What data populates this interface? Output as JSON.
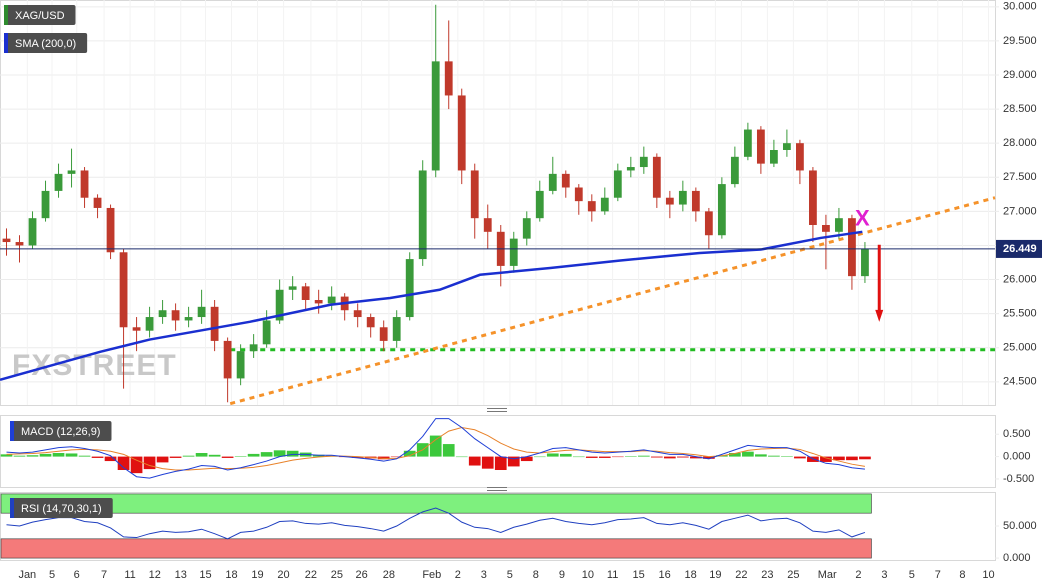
{
  "chart_data": [
    {
      "type": "candlestick",
      "series": [
        {
          "name": "XAG/USD",
          "up_color": "#3a9a3a",
          "down_color": "#c0392b",
          "legend_color": "#2e8b2e",
          "open": [
            26.6,
            26.55,
            26.5,
            26.9,
            27.3,
            27.55,
            27.6,
            27.2,
            27.05,
            26.4,
            25.3,
            25.25,
            25.45,
            25.55,
            25.4,
            25.45,
            25.6,
            25.1,
            24.55,
            24.95,
            25.05,
            25.4,
            25.85,
            25.9,
            25.7,
            25.65,
            25.75,
            25.55,
            25.45,
            25.3,
            25.1,
            25.45,
            26.3,
            27.6,
            29.2,
            28.7,
            27.6,
            26.9,
            26.7,
            26.2,
            26.6,
            26.9,
            27.3,
            27.55,
            27.35,
            27.15,
            27.0,
            27.2,
            27.6,
            27.65,
            27.8,
            27.2,
            27.1,
            27.3,
            27.0,
            26.65,
            27.4,
            27.8,
            28.2,
            27.7,
            27.9,
            28.0,
            27.6,
            26.8,
            26.7,
            26.9,
            26.05
          ],
          "high": [
            26.75,
            26.65,
            27.0,
            27.45,
            27.7,
            27.92,
            27.65,
            27.25,
            27.1,
            26.45,
            25.45,
            25.6,
            25.7,
            25.65,
            25.6,
            25.85,
            25.7,
            25.15,
            25.05,
            25.2,
            25.55,
            26.0,
            26.05,
            25.95,
            25.85,
            25.9,
            25.8,
            25.65,
            25.5,
            25.4,
            25.55,
            26.4,
            27.75,
            30.03,
            29.8,
            28.8,
            27.7,
            27.1,
            26.8,
            26.7,
            27.0,
            27.45,
            27.8,
            27.6,
            27.4,
            27.25,
            27.35,
            27.7,
            27.8,
            27.95,
            27.85,
            27.3,
            27.45,
            27.35,
            27.05,
            27.5,
            27.95,
            28.3,
            28.25,
            28.05,
            28.2,
            28.05,
            27.65,
            26.95,
            27.05,
            26.95,
            26.55
          ],
          "low": [
            26.35,
            26.25,
            26.45,
            26.85,
            27.2,
            27.35,
            27.05,
            26.9,
            26.3,
            24.4,
            24.95,
            25.15,
            25.35,
            25.25,
            25.3,
            25.35,
            24.95,
            24.2,
            24.45,
            24.85,
            25.0,
            25.35,
            25.7,
            25.55,
            25.5,
            25.55,
            25.4,
            25.3,
            25.15,
            24.95,
            25.0,
            25.4,
            26.2,
            27.5,
            28.5,
            27.4,
            26.6,
            26.45,
            25.9,
            26.1,
            26.5,
            26.85,
            27.25,
            27.2,
            26.95,
            26.85,
            26.95,
            27.15,
            27.5,
            27.55,
            27.05,
            26.9,
            27.0,
            26.85,
            26.45,
            26.6,
            27.35,
            27.75,
            27.55,
            27.65,
            27.8,
            27.4,
            26.55,
            26.15,
            26.6,
            25.85,
            25.95
          ],
          "close": [
            26.55,
            26.5,
            26.9,
            27.3,
            27.55,
            27.6,
            27.2,
            27.05,
            26.4,
            25.3,
            25.25,
            25.45,
            25.55,
            25.4,
            25.45,
            25.6,
            25.1,
            24.55,
            24.95,
            25.05,
            25.4,
            25.85,
            25.9,
            25.7,
            25.65,
            25.75,
            25.55,
            25.45,
            25.3,
            25.1,
            25.45,
            26.3,
            27.6,
            29.2,
            28.7,
            27.6,
            26.9,
            26.7,
            26.2,
            26.6,
            26.9,
            27.3,
            27.55,
            27.35,
            27.15,
            27.0,
            27.2,
            27.6,
            27.65,
            27.8,
            27.2,
            27.1,
            27.3,
            27.0,
            26.65,
            27.4,
            27.8,
            28.2,
            27.7,
            27.9,
            28.0,
            27.6,
            26.8,
            26.7,
            26.9,
            26.05,
            26.45
          ]
        }
      ],
      "sma": {
        "name": "SMA (200,0)",
        "color": "#1a2fd0",
        "x": [
          -0.5,
          7.2,
          11.0,
          18.7,
          24.9,
          29.5,
          33.3,
          36.4,
          41.8,
          47.2,
          53.3,
          58.0,
          62.6,
          65.8
        ],
        "values": [
          24.53,
          24.94,
          25.12,
          25.38,
          25.63,
          25.73,
          25.85,
          26.07,
          26.17,
          26.28,
          26.39,
          26.44,
          26.61,
          26.7
        ]
      },
      "last_price": 26.449,
      "last_price_color": "#1a2a6a",
      "trendline": {
        "x": [
          17.2,
          76
        ],
        "values": [
          24.18,
          27.2
        ],
        "color": "#f5922a"
      },
      "support": {
        "x": [
          17.2,
          76
        ],
        "value": 24.97,
        "color": "#22bb22"
      },
      "marker": {
        "text": "X",
        "x": 65.8,
        "value": 26.88,
        "color": "#e020d0"
      },
      "arrow": {
        "x": 67.1,
        "values": [
          26.51,
          25.38
        ],
        "color": "#e01010"
      },
      "watermark": "FXSTREET",
      "grid": true,
      "xlim": [
        -0.5,
        76
      ],
      "ylim": [
        24.16,
        30.1
      ],
      "yticks": [
        {
          "value": 24.5,
          "label": "24.500"
        },
        {
          "value": 25,
          "label": "25.000"
        },
        {
          "value": 25.5,
          "label": "25.500"
        },
        {
          "value": 26,
          "label": "26.000"
        },
        {
          "value": 26.5,
          "label": "26.500"
        },
        {
          "value": 27,
          "label": "27.000"
        },
        {
          "value": 27.5,
          "label": "27.500"
        },
        {
          "value": 28,
          "label": "28.000"
        },
        {
          "value": 28.5,
          "label": "28.500"
        },
        {
          "value": 29,
          "label": "29.000"
        },
        {
          "value": 29.5,
          "label": "29.500"
        },
        {
          "value": 30,
          "label": "30.000"
        }
      ],
      "xticks": [
        {
          "value": 1.6,
          "label": "Jan"
        },
        {
          "value": 3.5,
          "label": "5"
        },
        {
          "value": 5.4,
          "label": "6"
        },
        {
          "value": 7.5,
          "label": "7"
        },
        {
          "value": 9.5,
          "label": "11"
        },
        {
          "value": 11.4,
          "label": "12"
        },
        {
          "value": 13.4,
          "label": "13"
        },
        {
          "value": 15.3,
          "label": "15"
        },
        {
          "value": 17.3,
          "label": "18"
        },
        {
          "value": 19.3,
          "label": "19"
        },
        {
          "value": 21.3,
          "label": "20"
        },
        {
          "value": 23.4,
          "label": "22"
        },
        {
          "value": 25.4,
          "label": "25"
        },
        {
          "value": 27.3,
          "label": "26"
        },
        {
          "value": 29.4,
          "label": "28"
        },
        {
          "value": 32.7,
          "label": "Feb"
        },
        {
          "value": 34.7,
          "label": "2"
        },
        {
          "value": 36.7,
          "label": "3"
        },
        {
          "value": 38.7,
          "label": "5"
        },
        {
          "value": 40.7,
          "label": "8"
        },
        {
          "value": 42.7,
          "label": "9"
        },
        {
          "value": 44.7,
          "label": "10"
        },
        {
          "value": 46.6,
          "label": "11"
        },
        {
          "value": 48.6,
          "label": "15"
        },
        {
          "value": 50.6,
          "label": "16"
        },
        {
          "value": 52.6,
          "label": "18"
        },
        {
          "value": 54.5,
          "label": "19"
        },
        {
          "value": 56.5,
          "label": "22"
        },
        {
          "value": 58.5,
          "label": "23"
        },
        {
          "value": 60.5,
          "label": "25"
        },
        {
          "value": 63.1,
          "label": "Mar"
        },
        {
          "value": 65.5,
          "label": "2"
        },
        {
          "value": 67.5,
          "label": "3"
        },
        {
          "value": 69.6,
          "label": "5"
        },
        {
          "value": 71.6,
          "label": "7"
        },
        {
          "value": 73.5,
          "label": "8"
        },
        {
          "value": 75.5,
          "label": "10"
        }
      ]
    },
    {
      "type": "macd",
      "name": "MACD (12,26,9)",
      "legend_color": "#1f3fd6",
      "macd": {
        "color": "#1f3fd6",
        "values": [
          0.1,
          0.08,
          0.1,
          0.15,
          0.2,
          0.22,
          0.18,
          0.12,
          0.02,
          -0.25,
          -0.45,
          -0.48,
          -0.4,
          -0.33,
          -0.28,
          -0.2,
          -0.22,
          -0.3,
          -0.25,
          -0.18,
          -0.1,
          0.0,
          0.05,
          0.05,
          0.03,
          0.03,
          0.0,
          -0.03,
          -0.06,
          -0.1,
          -0.05,
          0.15,
          0.45,
          0.85,
          0.85,
          0.65,
          0.4,
          0.2,
          0.0,
          -0.05,
          0.0,
          0.08,
          0.18,
          0.2,
          0.15,
          0.1,
          0.08,
          0.1,
          0.12,
          0.15,
          0.1,
          0.05,
          0.05,
          0.0,
          -0.05,
          0.05,
          0.15,
          0.25,
          0.22,
          0.2,
          0.2,
          0.12,
          -0.05,
          -0.15,
          -0.18,
          -0.25,
          -0.28
        ]
      },
      "signal": {
        "color": "#e8822a",
        "values": [
          0.05,
          0.06,
          0.07,
          0.09,
          0.12,
          0.15,
          0.16,
          0.15,
          0.12,
          0.05,
          -0.08,
          -0.2,
          -0.27,
          -0.3,
          -0.3,
          -0.28,
          -0.26,
          -0.27,
          -0.26,
          -0.24,
          -0.2,
          -0.14,
          -0.08,
          -0.04,
          -0.01,
          0.01,
          0.01,
          0.0,
          -0.02,
          -0.04,
          -0.04,
          0.02,
          0.15,
          0.38,
          0.57,
          0.65,
          0.6,
          0.47,
          0.3,
          0.17,
          0.1,
          0.08,
          0.11,
          0.14,
          0.15,
          0.13,
          0.11,
          0.11,
          0.11,
          0.13,
          0.12,
          0.09,
          0.07,
          0.04,
          0.0,
          0.02,
          0.07,
          0.14,
          0.17,
          0.18,
          0.19,
          0.16,
          0.07,
          -0.03,
          -0.1,
          -0.17,
          -0.22
        ]
      },
      "histogram": {
        "up_color": "#3cc83c",
        "down_color": "#e01010",
        "values": [
          0.05,
          0.02,
          0.03,
          0.06,
          0.08,
          0.07,
          0.02,
          -0.03,
          -0.1,
          -0.3,
          -0.37,
          -0.28,
          -0.13,
          -0.03,
          0.02,
          0.08,
          0.04,
          -0.03,
          0.01,
          0.06,
          0.1,
          0.14,
          0.13,
          0.09,
          0.04,
          0.02,
          -0.01,
          -0.03,
          -0.04,
          -0.06,
          -0.01,
          0.13,
          0.3,
          0.47,
          0.28,
          0.0,
          -0.2,
          -0.27,
          -0.3,
          -0.22,
          -0.1,
          0.0,
          0.07,
          0.06,
          0.0,
          -0.03,
          -0.03,
          -0.01,
          0.01,
          0.02,
          -0.02,
          -0.04,
          -0.02,
          -0.04,
          -0.05,
          0.03,
          0.08,
          0.11,
          0.05,
          0.02,
          0.01,
          -0.04,
          -0.12,
          -0.12,
          -0.08,
          -0.08,
          -0.06
        ]
      },
      "ylim": [
        -0.68,
        0.93
      ],
      "yticks": [
        {
          "value": 0.5,
          "label": "0.500"
        },
        {
          "value": 0,
          "label": "0.000"
        },
        {
          "value": -0.5,
          "label": "-0.500"
        }
      ]
    },
    {
      "type": "rsi",
      "name": "RSI (14,70,30,1)",
      "color": "#2040c0",
      "legend_color": "#2040c0",
      "values": [
        52,
        50,
        56,
        60,
        63,
        63,
        57,
        55,
        47,
        33,
        32,
        38,
        42,
        40,
        41,
        45,
        38,
        30,
        40,
        42,
        48,
        57,
        58,
        54,
        53,
        55,
        51,
        49,
        46,
        42,
        50,
        62,
        72,
        78,
        70,
        56,
        48,
        46,
        40,
        48,
        53,
        59,
        62,
        57,
        54,
        52,
        55,
        60,
        61,
        63,
        54,
        52,
        55,
        51,
        45,
        57,
        62,
        67,
        58,
        61,
        62,
        55,
        42,
        40,
        44,
        33,
        40
      ],
      "upper_band": [
        70,
        100
      ],
      "upper_color": "#7ef07e",
      "lower_band": [
        0,
        30
      ],
      "lower_color": "#f47a7a",
      "ylim": [
        -3,
        103
      ],
      "yticks": [
        {
          "value": 50,
          "label": "50.000"
        },
        {
          "value": 0,
          "label": "0.000"
        }
      ]
    }
  ]
}
